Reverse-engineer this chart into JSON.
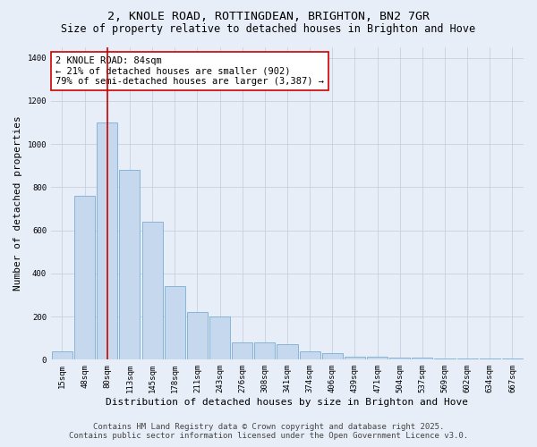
{
  "title_line1": "2, KNOLE ROAD, ROTTINGDEAN, BRIGHTON, BN2 7GR",
  "title_line2": "Size of property relative to detached houses in Brighton and Hove",
  "xlabel": "Distribution of detached houses by size in Brighton and Hove",
  "ylabel": "Number of detached properties",
  "categories": [
    "15sqm",
    "48sqm",
    "80sqm",
    "113sqm",
    "145sqm",
    "178sqm",
    "211sqm",
    "243sqm",
    "276sqm",
    "308sqm",
    "341sqm",
    "374sqm",
    "406sqm",
    "439sqm",
    "471sqm",
    "504sqm",
    "537sqm",
    "569sqm",
    "602sqm",
    "634sqm",
    "667sqm"
  ],
  "values": [
    40,
    760,
    1100,
    880,
    640,
    340,
    220,
    200,
    80,
    80,
    70,
    40,
    30,
    15,
    15,
    8,
    8,
    5,
    5,
    5,
    5
  ],
  "bar_color": "#c5d8ee",
  "bar_edge_color": "#7aadd4",
  "property_size_index": 2,
  "property_label": "2 KNOLE ROAD: 84sqm",
  "annotation_line1": "← 21% of detached houses are smaller (902)",
  "annotation_line2": "79% of semi-detached houses are larger (3,387) →",
  "vline_color": "#cc0000",
  "annotation_box_edge": "#cc0000",
  "background_color": "#e8eef8",
  "grid_color": "#c8d0e0",
  "ylim": [
    0,
    1450
  ],
  "yticks": [
    0,
    200,
    400,
    600,
    800,
    1000,
    1200,
    1400
  ],
  "footer_line1": "Contains HM Land Registry data © Crown copyright and database right 2025.",
  "footer_line2": "Contains public sector information licensed under the Open Government Licence v3.0.",
  "title_fontsize": 9.5,
  "subtitle_fontsize": 8.5,
  "axis_label_fontsize": 8,
  "tick_fontsize": 6.5,
  "annotation_fontsize": 7.5,
  "footer_fontsize": 6.5
}
